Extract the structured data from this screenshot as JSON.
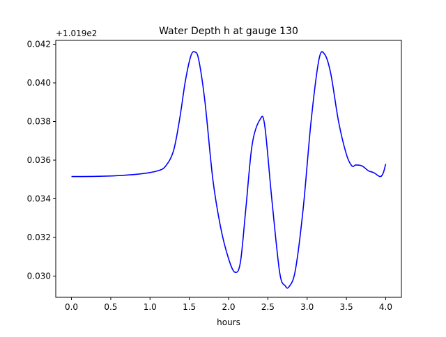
{
  "chart_data": {
    "type": "line",
    "title": "Water Depth h at gauge 130",
    "xlabel": "hours",
    "ylabel": "",
    "y_offset_label": "+1.019e2",
    "xlim": [
      -0.2,
      4.2
    ],
    "ylim": [
      0.0289,
      0.0422
    ],
    "x_ticks": [
      0.0,
      0.5,
      1.0,
      1.5,
      2.0,
      2.5,
      3.0,
      3.5,
      4.0
    ],
    "x_tick_labels": [
      "0.0",
      "0.5",
      "1.0",
      "1.5",
      "2.0",
      "2.5",
      "3.0",
      "3.5",
      "4.0"
    ],
    "y_ticks": [
      0.03,
      0.032,
      0.034,
      0.036,
      0.038,
      0.04,
      0.042
    ],
    "y_tick_labels": [
      "0.030",
      "0.032",
      "0.034",
      "0.036",
      "0.038",
      "0.040",
      "0.042"
    ],
    "grid": false,
    "legend": "none",
    "series": [
      {
        "color": "#0000ff",
        "points": [
          [
            0.0,
            0.03515
          ],
          [
            0.3,
            0.03516
          ],
          [
            0.6,
            0.0352
          ],
          [
            0.9,
            0.0353
          ],
          [
            1.1,
            0.03545
          ],
          [
            1.2,
            0.0357
          ],
          [
            1.3,
            0.0365
          ],
          [
            1.38,
            0.0382
          ],
          [
            1.45,
            0.0401
          ],
          [
            1.52,
            0.0414
          ],
          [
            1.57,
            0.0416
          ],
          [
            1.62,
            0.0412
          ],
          [
            1.7,
            0.039
          ],
          [
            1.8,
            0.035
          ],
          [
            1.9,
            0.0325
          ],
          [
            2.0,
            0.0309
          ],
          [
            2.08,
            0.0302
          ],
          [
            2.15,
            0.0307
          ],
          [
            2.22,
            0.0335
          ],
          [
            2.3,
            0.0368
          ],
          [
            2.4,
            0.0381
          ],
          [
            2.46,
            0.0378
          ],
          [
            2.55,
            0.034
          ],
          [
            2.65,
            0.0302
          ],
          [
            2.72,
            0.0295
          ],
          [
            2.77,
            0.02945
          ],
          [
            2.85,
            0.0303
          ],
          [
            2.95,
            0.0335
          ],
          [
            3.05,
            0.038
          ],
          [
            3.15,
            0.0412
          ],
          [
            3.22,
            0.0415
          ],
          [
            3.3,
            0.0405
          ],
          [
            3.4,
            0.038
          ],
          [
            3.5,
            0.0363
          ],
          [
            3.57,
            0.0357
          ],
          [
            3.62,
            0.03575
          ],
          [
            3.7,
            0.0357
          ],
          [
            3.78,
            0.03545
          ],
          [
            3.85,
            0.03535
          ],
          [
            3.93,
            0.03515
          ],
          [
            3.97,
            0.03535
          ],
          [
            4.0,
            0.0358
          ]
        ]
      }
    ]
  }
}
